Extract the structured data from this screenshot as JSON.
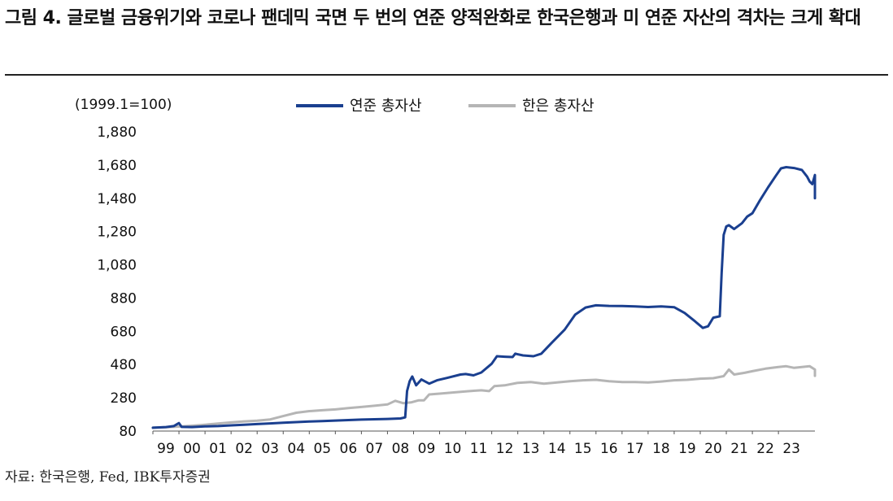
{
  "title": "그림 4. 글로벌 금융위기와 코로나 팬데믹 국면 두 번의 연준 양적완화로 한국은행과 미 연준 자산의 격차는 크게 확대",
  "source": "자료: 한국은행, Fed, IBK투자증권",
  "chart_data": {
    "type": "line",
    "unit_label": "(1999.1=100)",
    "ylim": [
      80,
      1880
    ],
    "y_ticks": [
      "1,880",
      "1,680",
      "1,480",
      "1,280",
      "1,080",
      "880",
      "680",
      "480",
      "280",
      "80"
    ],
    "x_ticks": [
      "99",
      "00",
      "01",
      "02",
      "03",
      "04",
      "05",
      "06",
      "07",
      "08",
      "09",
      "10",
      "11",
      "12",
      "13",
      "14",
      "15",
      "16",
      "17",
      "18",
      "19",
      "20",
      "21",
      "22",
      "23"
    ],
    "xlim": [
      1999.0,
      2024.4
    ],
    "legend_position": "top-center",
    "grid": false,
    "series": [
      {
        "name": "연준 총자산",
        "color": "#1a3f8f",
        "points": [
          [
            1999.0,
            100
          ],
          [
            1999.5,
            104
          ],
          [
            1999.8,
            110
          ],
          [
            2000.0,
            128
          ],
          [
            2000.1,
            105
          ],
          [
            2000.5,
            104
          ],
          [
            2001.0,
            108
          ],
          [
            2001.5,
            110
          ],
          [
            2002.0,
            114
          ],
          [
            2002.5,
            118
          ],
          [
            2003.0,
            122
          ],
          [
            2003.5,
            126
          ],
          [
            2004.0,
            130
          ],
          [
            2004.5,
            134
          ],
          [
            2005.0,
            137
          ],
          [
            2005.5,
            140
          ],
          [
            2006.0,
            143
          ],
          [
            2006.5,
            146
          ],
          [
            2007.0,
            149
          ],
          [
            2007.5,
            151
          ],
          [
            2008.0,
            153
          ],
          [
            2008.5,
            156
          ],
          [
            2008.68,
            162
          ],
          [
            2008.75,
            320
          ],
          [
            2008.85,
            380
          ],
          [
            2008.95,
            408
          ],
          [
            2009.1,
            355
          ],
          [
            2009.3,
            390
          ],
          [
            2009.6,
            365
          ],
          [
            2009.9,
            385
          ],
          [
            2010.3,
            400
          ],
          [
            2010.8,
            420
          ],
          [
            2011.0,
            423
          ],
          [
            2011.3,
            415
          ],
          [
            2011.6,
            432
          ],
          [
            2012.0,
            485
          ],
          [
            2012.2,
            530
          ],
          [
            2012.5,
            527
          ],
          [
            2012.8,
            525
          ],
          [
            2012.9,
            545
          ],
          [
            2013.2,
            535
          ],
          [
            2013.6,
            530
          ],
          [
            2013.9,
            545
          ],
          [
            2014.3,
            610
          ],
          [
            2014.8,
            690
          ],
          [
            2015.2,
            780
          ],
          [
            2015.6,
            823
          ],
          [
            2016.0,
            836
          ],
          [
            2016.5,
            833
          ],
          [
            2017.0,
            832
          ],
          [
            2017.5,
            830
          ],
          [
            2018.0,
            826
          ],
          [
            2018.5,
            830
          ],
          [
            2019.0,
            825
          ],
          [
            2019.4,
            790
          ],
          [
            2019.8,
            740
          ],
          [
            2020.1,
            700
          ],
          [
            2020.3,
            710
          ],
          [
            2020.5,
            762
          ],
          [
            2020.75,
            770
          ],
          [
            2020.82,
            1030
          ],
          [
            2020.9,
            1260
          ],
          [
            2021.0,
            1310
          ],
          [
            2021.1,
            1318
          ],
          [
            2021.3,
            1295
          ],
          [
            2021.6,
            1330
          ],
          [
            2021.8,
            1370
          ],
          [
            2022.0,
            1390
          ],
          [
            2022.3,
            1470
          ],
          [
            2022.6,
            1545
          ],
          [
            2022.9,
            1615
          ],
          [
            2023.1,
            1660
          ],
          [
            2023.3,
            1667
          ],
          [
            2023.6,
            1662
          ],
          [
            2023.9,
            1650
          ],
          [
            2024.1,
            1610
          ],
          [
            2024.2,
            1580
          ],
          [
            2024.3,
            1565
          ],
          [
            2024.45,
            1620
          ],
          [
            2024.55,
            1590
          ],
          [
            2024.7,
            1550
          ],
          [
            2024.9,
            1510
          ],
          [
            2025.0,
            1480
          ]
        ]
      },
      {
        "name": "한은 총자산",
        "color": "#b5b5b5",
        "points": [
          [
            1999.0,
            100
          ],
          [
            1999.5,
            103
          ],
          [
            2000.0,
            107
          ],
          [
            2000.5,
            112
          ],
          [
            2001.0,
            118
          ],
          [
            2001.5,
            125
          ],
          [
            2002.0,
            132
          ],
          [
            2002.5,
            138
          ],
          [
            2003.0,
            142
          ],
          [
            2003.5,
            150
          ],
          [
            2004.0,
            170
          ],
          [
            2004.5,
            190
          ],
          [
            2005.0,
            200
          ],
          [
            2005.5,
            205
          ],
          [
            2006.0,
            210
          ],
          [
            2006.5,
            218
          ],
          [
            2007.0,
            225
          ],
          [
            2007.5,
            232
          ],
          [
            2008.0,
            240
          ],
          [
            2008.3,
            262
          ],
          [
            2008.6,
            248
          ],
          [
            2008.9,
            252
          ],
          [
            2009.2,
            265
          ],
          [
            2009.4,
            265
          ],
          [
            2009.6,
            300
          ],
          [
            2010.0,
            305
          ],
          [
            2010.5,
            312
          ],
          [
            2011.0,
            318
          ],
          [
            2011.3,
            322
          ],
          [
            2011.6,
            325
          ],
          [
            2011.9,
            320
          ],
          [
            2012.1,
            350
          ],
          [
            2012.5,
            355
          ],
          [
            2013.0,
            370
          ],
          [
            2013.5,
            375
          ],
          [
            2014.0,
            365
          ],
          [
            2014.5,
            372
          ],
          [
            2015.0,
            380
          ],
          [
            2015.5,
            385
          ],
          [
            2016.0,
            388
          ],
          [
            2016.5,
            380
          ],
          [
            2017.0,
            375
          ],
          [
            2017.5,
            375
          ],
          [
            2018.0,
            372
          ],
          [
            2018.5,
            378
          ],
          [
            2019.0,
            385
          ],
          [
            2019.5,
            388
          ],
          [
            2020.0,
            395
          ],
          [
            2020.5,
            398
          ],
          [
            2020.9,
            410
          ],
          [
            2021.1,
            450
          ],
          [
            2021.3,
            420
          ],
          [
            2021.7,
            430
          ],
          [
            2022.0,
            440
          ],
          [
            2022.5,
            455
          ],
          [
            2023.0,
            465
          ],
          [
            2023.3,
            470
          ],
          [
            2023.6,
            460
          ],
          [
            2023.9,
            465
          ],
          [
            2024.2,
            470
          ],
          [
            2024.5,
            450
          ],
          [
            2024.7,
            435
          ],
          [
            2024.9,
            425
          ],
          [
            2025.0,
            412
          ]
        ]
      }
    ]
  }
}
